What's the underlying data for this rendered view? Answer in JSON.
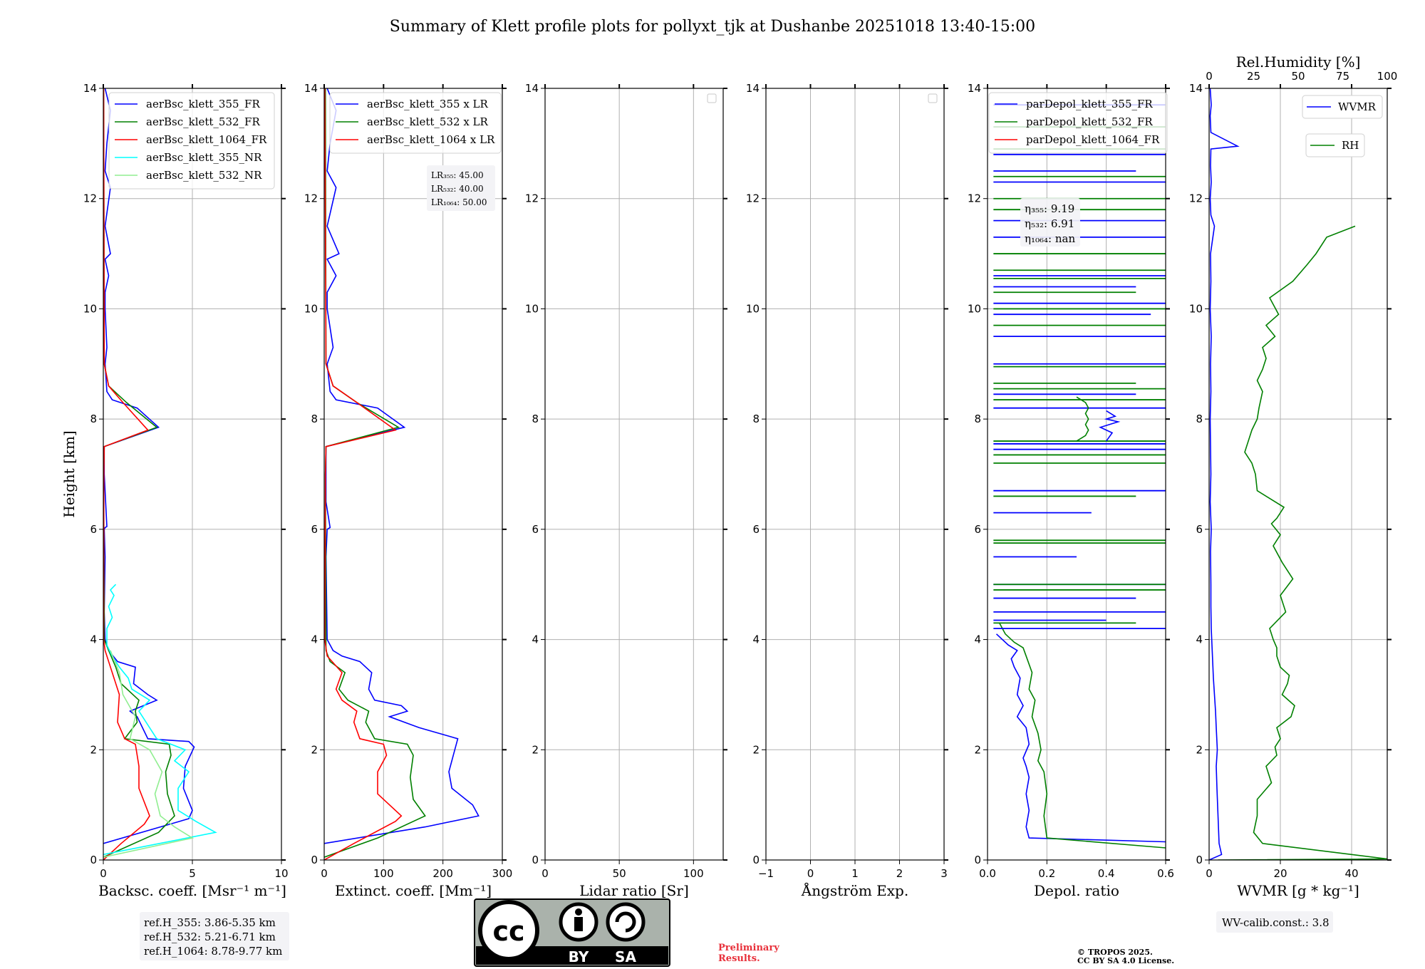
{
  "title": "Summary of Klett profile plots for pollyxt_tjk at Dushanbe 20251018 13:40-15:00",
  "colors": {
    "blue": "#0000ff",
    "green": "#008000",
    "red": "#ff0000",
    "cyan": "#00ffff",
    "lightgreen": "#90ee90"
  },
  "chart_data": [
    {
      "type": "line",
      "xlabel": "Backsc. coeff. [Msr⁻¹ m⁻¹]",
      "ylabel": "Height [km]",
      "xlim": [
        0,
        10
      ],
      "ylim": [
        0,
        14
      ],
      "xticks": [
        "0",
        "5",
        "10"
      ],
      "yticks": [
        "0",
        "2",
        "4",
        "6",
        "8",
        "10",
        "12",
        "14"
      ],
      "legend": [
        "aerBsc_klett_355_FR",
        "aerBsc_klett_532_FR",
        "aerBsc_klett_1064_FR",
        "aerBsc_klett_355_NR",
        "aerBsc_klett_532_NR"
      ],
      "series": [
        {
          "name": "aerBsc_klett_355_FR",
          "color": "#0000ff",
          "x": [
            0,
            4.8,
            5.0,
            4.5,
            4.6,
            5.1,
            4.8,
            2.5,
            1.9,
            1.5,
            3.0,
            2.5,
            1.7,
            1.8,
            0.8,
            0.3,
            0.1,
            0.05,
            0.1,
            0.05,
            0.1,
            0.2,
            0.05,
            0.05,
            3.1,
            1.9,
            0.5,
            0.2,
            0.1,
            0.2,
            0.1,
            0.1,
            0.3,
            0.1,
            0.4,
            0.1,
            0.4,
            0.1,
            0.2,
            0.4,
            0.1
          ],
          "y": [
            0.3,
            0.75,
            0.9,
            1.3,
            1.7,
            2.05,
            2.15,
            2.2,
            2.6,
            2.7,
            2.9,
            3.0,
            3.2,
            3.5,
            3.6,
            3.8,
            4.0,
            4.5,
            5.5,
            6.0,
            6.03,
            6.05,
            7.0,
            7.5,
            7.85,
            8.2,
            8.35,
            8.5,
            9.0,
            9.3,
            10.0,
            10.3,
            10.6,
            10.9,
            11.0,
            11.5,
            12.2,
            12.5,
            13.0,
            13.6,
            14
          ]
        },
        {
          "name": "aerBsc_klett_532_FR",
          "color": "#008000",
          "x": [
            0,
            3.1,
            4.0,
            3.6,
            3.5,
            3.8,
            3.7,
            1.2,
            1.9,
            1.8,
            2.0,
            1.0,
            0.7,
            0.3,
            0.05,
            0.02,
            0.05,
            3.0,
            1.3,
            0.3,
            0.05,
            0.02
          ],
          "y": [
            0.05,
            0.5,
            0.8,
            1.2,
            1.6,
            1.9,
            2.1,
            2.2,
            2.5,
            2.7,
            2.9,
            3.2,
            3.5,
            3.8,
            4.0,
            7.0,
            7.5,
            7.85,
            8.3,
            8.6,
            9.0,
            14
          ]
        },
        {
          "name": "aerBsc_klett_1064_FR",
          "color": "#ff0000",
          "x": [
            0,
            1.0,
            2.3,
            2.6,
            2.0,
            2.0,
            1.8,
            1.2,
            0.8,
            0.9,
            0.4,
            0.1,
            0.02,
            0.03,
            0.05,
            2.5,
            1.1,
            0.3,
            0.05,
            0.02
          ],
          "y": [
            0,
            0.3,
            0.65,
            0.8,
            1.3,
            1.7,
            2.1,
            2.2,
            2.5,
            3.0,
            3.5,
            3.8,
            4.0,
            7.0,
            7.5,
            7.8,
            8.3,
            8.6,
            9.0,
            14
          ]
        },
        {
          "name": "aerBsc_klett_355_NR",
          "color": "#00ffff",
          "x": [
            0,
            6.3,
            5.2,
            4.2,
            4.2,
            4.8,
            4.0,
            4.6,
            3.0,
            2.4,
            2.0,
            2.6,
            1.6,
            1.4,
            0.9,
            0.5,
            0.2,
            0.2,
            0.5,
            0.3,
            0.6,
            0.4,
            0.7
          ],
          "y": [
            0.1,
            0.5,
            0.7,
            0.9,
            1.3,
            1.6,
            1.8,
            2.0,
            2.2,
            2.5,
            2.7,
            2.9,
            3.1,
            3.3,
            3.5,
            3.7,
            3.9,
            4.2,
            4.4,
            4.6,
            4.8,
            4.9,
            5.0
          ]
        },
        {
          "name": "aerBsc_klett_532_NR",
          "color": "#90ee90",
          "x": [
            0,
            5.0,
            4.0,
            3.2,
            2.9,
            3.3,
            2.6,
            1.5,
            1.8,
            1.1,
            0.9,
            0.4
          ],
          "y": [
            0.05,
            0.4,
            0.6,
            0.8,
            1.2,
            1.6,
            2.0,
            2.2,
            2.6,
            3.0,
            3.4,
            3.8
          ]
        }
      ],
      "note": [
        "ref.H_355: 3.86-5.35 km",
        "ref.H_532: 5.21-6.71 km",
        "ref.H_1064: 8.78-9.77 km"
      ]
    },
    {
      "type": "line",
      "xlabel": "Extinct. coeff. [Mm⁻¹]",
      "xlim": [
        0,
        300
      ],
      "ylim": [
        0,
        14
      ],
      "xticks": [
        "0",
        "100",
        "200",
        "300"
      ],
      "yticks": [
        "0",
        "2",
        "4",
        "6",
        "8",
        "10",
        "12",
        "14"
      ],
      "legend": [
        "aerBsc_klett_355 x LR",
        "aerBsc_klett_532 x LR",
        "aerBsc_klett_1064 x LR"
      ],
      "series": [
        {
          "name": "aerBsc_klett_355 x LR",
          "color": "#0000ff",
          "x": [
            0,
            170,
            260,
            250,
            215,
            210,
            220,
            225,
            160,
            110,
            140,
            130,
            85,
            75,
            80,
            60,
            30,
            15,
            5,
            3,
            5,
            10,
            3,
            3,
            135,
            90,
            20,
            10,
            5,
            15,
            5,
            5,
            20,
            5,
            25,
            5,
            20,
            5,
            10,
            20,
            5
          ],
          "y": [
            0.3,
            0.6,
            0.8,
            1.0,
            1.3,
            1.6,
            2.0,
            2.2,
            2.4,
            2.6,
            2.7,
            2.8,
            2.9,
            3.1,
            3.4,
            3.6,
            3.7,
            3.8,
            4.0,
            5.5,
            6.0,
            6.03,
            6.5,
            7.5,
            7.85,
            8.2,
            8.35,
            8.5,
            9.0,
            9.3,
            10.0,
            10.3,
            10.6,
            10.9,
            11.0,
            11.5,
            12.2,
            12.5,
            13.0,
            13.6,
            14
          ]
        },
        {
          "name": "aerBsc_klett_532 x LR",
          "color": "#008000",
          "x": [
            0,
            90,
            170,
            150,
            145,
            150,
            140,
            85,
            70,
            75,
            40,
            25,
            35,
            10,
            3,
            2,
            3,
            125,
            55,
            15,
            3,
            2
          ],
          "y": [
            0.05,
            0.4,
            0.8,
            1.1,
            1.5,
            1.9,
            2.1,
            2.2,
            2.5,
            2.7,
            2.9,
            3.1,
            3.4,
            3.6,
            3.8,
            7.0,
            7.5,
            7.85,
            8.3,
            8.6,
            9.0,
            14
          ]
        },
        {
          "name": "aerBsc_klett_1064 x LR",
          "color": "#ff0000",
          "x": [
            0,
            50,
            120,
            130,
            90,
            90,
            105,
            100,
            60,
            50,
            55,
            30,
            20,
            30,
            5,
            1,
            2,
            3,
            120,
            55,
            15,
            3,
            1
          ],
          "y": [
            0,
            0.3,
            0.7,
            0.8,
            1.2,
            1.6,
            1.9,
            2.1,
            2.2,
            2.5,
            2.7,
            2.9,
            3.1,
            3.4,
            3.7,
            4.0,
            7.0,
            7.5,
            7.8,
            8.3,
            8.6,
            9.0,
            14
          ]
        }
      ],
      "note": [
        "LR₃₅₅: 45.00",
        "LR₅₃₂: 40.00",
        "LR₁₀₆₄: 50.00"
      ]
    },
    {
      "type": "line",
      "xlabel": "Lidar ratio [Sr]",
      "xlim": [
        0,
        120
      ],
      "ylim": [
        0,
        14
      ],
      "xticks": [
        "0",
        "50",
        "100"
      ],
      "yticks": [
        "0",
        "2",
        "4",
        "6",
        "8",
        "10",
        "12",
        "14"
      ],
      "series": []
    },
    {
      "type": "line",
      "xlabel": "Ångström Exp.",
      "xlim": [
        -1,
        3
      ],
      "ylim": [
        0,
        14
      ],
      "xticks": [
        "−1",
        "0",
        "1",
        "2",
        "3"
      ],
      "yticks": [
        "0",
        "2",
        "4",
        "6",
        "8",
        "10",
        "12",
        "14"
      ],
      "series": []
    },
    {
      "type": "line",
      "xlabel": "Depol. ratio",
      "xlim": [
        0,
        0.6
      ],
      "ylim": [
        0,
        14
      ],
      "xticks": [
        "0.0",
        "0.2",
        "0.4",
        "0.6"
      ],
      "yticks": [
        "0",
        "2",
        "4",
        "6",
        "8",
        "10",
        "12",
        "14"
      ],
      "legend": [
        "parDepol_klett_355_FR",
        "parDepol_klett_532_FR",
        "parDepol_klett_1064_FR"
      ],
      "series": [
        {
          "name": "parDepol_klett_355_FR",
          "color": "#0000ff",
          "x": [
            0.6,
            0.14,
            0.13,
            0.14,
            0.13,
            0.14,
            0.13,
            0.12,
            0.14,
            0.13,
            0.1,
            0.12,
            0.1,
            0.11,
            0.09,
            0.08,
            0.1,
            0.07,
            0.03
          ],
          "y": [
            0.33,
            0.4,
            0.6,
            0.9,
            1.2,
            1.5,
            1.7,
            1.85,
            2.1,
            2.4,
            2.6,
            2.8,
            3.0,
            3.3,
            3.5,
            3.65,
            3.8,
            3.9,
            4.1
          ]
        },
        {
          "name": "parDepol_klett_532_FR",
          "color": "#008000",
          "x": [
            0.6,
            0.2,
            0.19,
            0.2,
            0.19,
            0.17,
            0.18,
            0.17,
            0.15,
            0.16,
            0.14,
            0.15,
            0.13,
            0.12,
            0.09,
            0.06,
            0.04
          ],
          "y": [
            0.22,
            0.4,
            0.8,
            1.2,
            1.6,
            1.8,
            2.0,
            2.3,
            2.6,
            2.9,
            3.1,
            3.4,
            3.7,
            3.85,
            3.95,
            4.1,
            4.3
          ]
        },
        {
          "name": "parDepol_klett_1064_FR",
          "color": "#ff0000",
          "x": [],
          "y": []
        }
      ],
      "spikes": [
        {
          "color": "#0000ff",
          "y": [
            4.2,
            4.35,
            4.5,
            4.75,
            5.0,
            5.5,
            6.3,
            6.7,
            7.45,
            7.55,
            8.2,
            8.45,
            9.0,
            9.5,
            9.9,
            10.1,
            10.4,
            10.6,
            11.3,
            11.6,
            12.3,
            12.5,
            12.8,
            13.7
          ],
          "x": [
            0.6,
            0.4,
            0.6,
            0.5,
            0.6,
            0.3,
            0.35,
            0.6,
            0.6,
            0.6,
            0.6,
            0.5,
            0.6,
            0.6,
            0.55,
            0.6,
            0.5,
            0.6,
            0.6,
            0.6,
            0.6,
            0.5,
            0.6,
            0.6
          ]
        },
        {
          "color": "#008000",
          "y": [
            4.3,
            4.9,
            5.0,
            5.75,
            5.8,
            6.6,
            7.2,
            7.35,
            7.6,
            8.35,
            8.55,
            8.65,
            8.95,
            9.7,
            10.0,
            10.3,
            10.55,
            10.7,
            11.0,
            11.8,
            12.0,
            12.4,
            12.9,
            13.3
          ],
          "x": [
            0.5,
            0.6,
            0.6,
            0.6,
            0.6,
            0.5,
            0.6,
            0.6,
            0.6,
            0.6,
            0.6,
            0.5,
            0.6,
            0.6,
            0.6,
            0.5,
            0.6,
            0.6,
            0.6,
            0.6,
            0.6,
            0.6,
            0.6,
            0.6
          ]
        }
      ],
      "bump": {
        "color": "#008000",
        "x": [
          0.3,
          0.33,
          0.34,
          0.33,
          0.34,
          0.33,
          0.34,
          0.33,
          0.3
        ],
        "y": [
          7.6,
          7.7,
          7.8,
          7.9,
          8.0,
          8.1,
          8.2,
          8.3,
          8.4
        ]
      },
      "bump2": {
        "color": "#0000ff",
        "x": [
          0.4,
          0.42,
          0.38,
          0.44,
          0.4,
          0.43,
          0.4
        ],
        "y": [
          7.6,
          7.75,
          7.85,
          7.95,
          8.0,
          8.05,
          8.15
        ]
      },
      "note": [
        "η₃₅₅: 9.19",
        "η₅₃₂: 6.91",
        "η₁₀₆₄: nan"
      ]
    },
    {
      "type": "line",
      "xlabel": "WVMR [g * kg⁻¹]",
      "xlabel_top": "Rel.Humidity [%]",
      "xlim": [
        0,
        50
      ],
      "xlim_top": [
        0,
        100
      ],
      "ylim": [
        0,
        14
      ],
      "xticks": [
        "0",
        "20",
        "40"
      ],
      "xticks_top": [
        "0",
        "25",
        "50",
        "75",
        "100"
      ],
      "yticks": [
        "0",
        "2",
        "4",
        "6",
        "8",
        "10",
        "12",
        "14"
      ],
      "legend": [
        "WVMR",
        "RH"
      ],
      "series": [
        {
          "name": "WVMR",
          "color": "#0000ff",
          "axis": "bottom",
          "x": [
            0,
            3.5,
            2.8,
            2.5,
            2.2,
            2.0,
            2.3,
            2.0,
            1.8,
            1.5,
            1.2,
            1.0,
            0.8,
            0.6,
            0.5,
            0.5,
            0.4,
            0.6,
            0.3,
            0.5,
            0.4,
            0.3,
            0.5,
            0.4,
            0.6,
            0.3,
            0.5,
            0.4,
            1.5,
            0.5,
            0.3,
            0.6,
            0.4,
            0.5,
            8.0,
            0.5,
            0.3,
            0.6,
            0.4,
            0.3
          ],
          "y": [
            0,
            0.1,
            0.3,
            0.8,
            1.3,
            1.7,
            2.0,
            2.4,
            2.7,
            3.0,
            3.3,
            3.6,
            3.9,
            4.2,
            4.6,
            5.0,
            5.6,
            6.0,
            6.5,
            7.0,
            7.5,
            8.0,
            8.5,
            9.0,
            9.5,
            10.0,
            10.5,
            11.0,
            11.5,
            11.7,
            12.0,
            12.3,
            12.6,
            12.9,
            12.95,
            13.2,
            13.5,
            13.7,
            13.9,
            14
          ]
        },
        {
          "name": "RH",
          "color": "#008000",
          "axis": "top",
          "x": [
            5,
            100,
            30,
            25,
            27,
            27,
            35,
            32,
            38,
            37,
            40,
            38,
            46,
            48,
            41,
            44,
            45,
            40,
            38,
            38,
            36,
            34,
            43,
            40,
            47,
            41,
            36,
            40,
            35,
            38,
            42,
            27,
            26,
            24,
            20,
            22,
            24,
            27,
            28,
            30,
            27,
            30,
            32,
            30,
            37,
            32,
            39,
            34,
            47,
            55,
            60,
            66,
            82
          ],
          "y": [
            0,
            0.02,
            0.3,
            0.5,
            0.8,
            1.1,
            1.4,
            1.7,
            1.9,
            2.05,
            2.2,
            2.4,
            2.6,
            2.8,
            3.0,
            3.2,
            3.35,
            3.5,
            3.7,
            3.85,
            4.0,
            4.2,
            4.5,
            4.8,
            5.1,
            5.4,
            5.7,
            5.9,
            6.1,
            6.2,
            6.4,
            6.7,
            7.0,
            7.2,
            7.4,
            7.6,
            7.8,
            8.0,
            8.2,
            8.5,
            8.7,
            8.9,
            9.1,
            9.3,
            9.5,
            9.7,
            9.9,
            10.2,
            10.5,
            10.8,
            11.0,
            11.3,
            11.5
          ]
        }
      ],
      "note": [
        "WV-calib.const.: 3.8"
      ]
    }
  ],
  "license": {
    "cc": "cc",
    "by": "BY",
    "sa": "SA"
  },
  "preliminary": [
    "Preliminary",
    "Results."
  ],
  "copyright": [
    "© TROPOS 2025.",
    "CC BY SA 4.0 License."
  ]
}
